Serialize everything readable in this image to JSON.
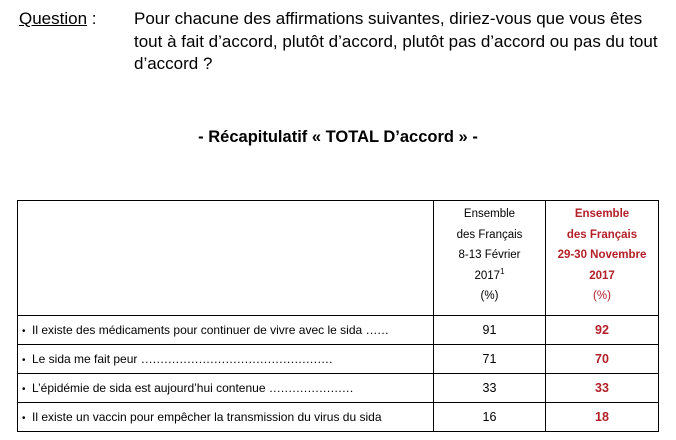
{
  "question": {
    "label": "Question",
    "separator": " :",
    "lines": [
      "Pour chacune des affirmations suivantes, diriez-vous que vous êtes",
      "tout à fait d’accord, plutôt d’accord, plutôt pas d’accord ou pas du tout",
      "d’accord ?"
    ]
  },
  "summary_title": "- Récapitulatif « TOTAL D’accord » -",
  "table": {
    "columns": [
      {
        "lines": [
          "Ensemble",
          "des Français",
          "8-13 Février"
        ],
        "year": "2017",
        "footnote": "1",
        "unit": "(%)",
        "accent": false
      },
      {
        "lines": [
          "Ensemble",
          "des Français",
          "29-30 Novembre"
        ],
        "year": "2017",
        "footnote": "",
        "unit": "(%)",
        "accent": true
      }
    ],
    "rows": [
      {
        "bullet": "•",
        "label": "Il existe des médicaments pour continuer de vivre avec le sida",
        "dots": " ......",
        "v1": "91",
        "v2": "92"
      },
      {
        "bullet": "•",
        "label": "Le sida me fait peur",
        "dots": " ..................................................",
        "v1": "71",
        "v2": "70"
      },
      {
        "bullet": "•",
        "label": "L’épidémie de sida est aujourd’hui contenue",
        "dots": " ......................",
        "v1": "33",
        "v2": "33"
      },
      {
        "bullet": "•",
        "label": "Il existe un vaccin pour empêcher la transmission du virus du sida",
        "dots": "",
        "v1": "16",
        "v2": "18"
      }
    ]
  },
  "colors": {
    "text": "#000000",
    "accent": "#b3202a",
    "border": "#000000",
    "background": "#ffffff"
  }
}
